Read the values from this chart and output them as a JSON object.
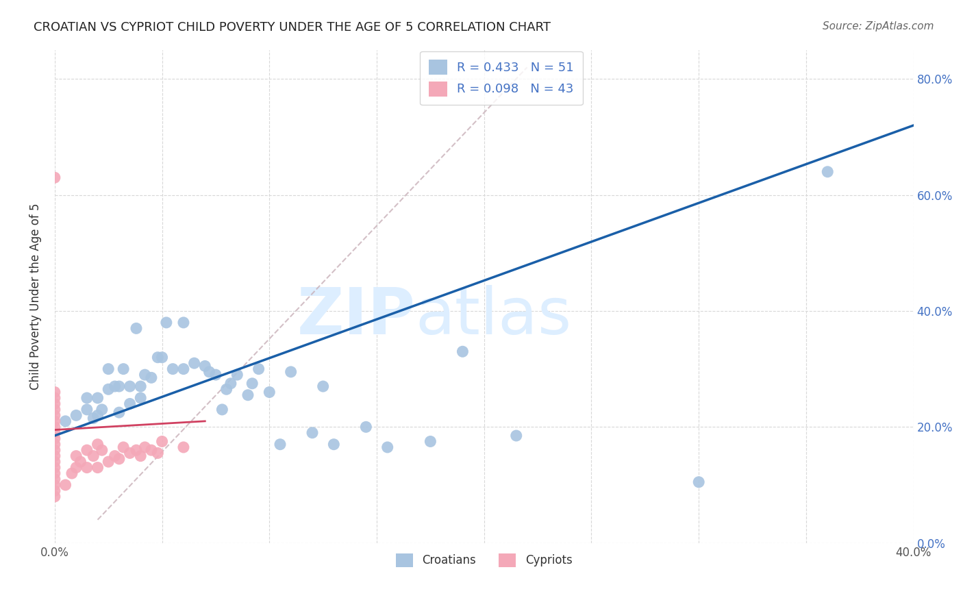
{
  "title": "CROATIAN VS CYPRIOT CHILD POVERTY UNDER THE AGE OF 5 CORRELATION CHART",
  "source": "Source: ZipAtlas.com",
  "ylabel": "Child Poverty Under the Age of 5",
  "xlim": [
    0.0,
    0.4
  ],
  "ylim": [
    0.0,
    0.85
  ],
  "ytick_vals": [
    0.0,
    0.2,
    0.4,
    0.6,
    0.8
  ],
  "ytick_labels": [
    "0.0%",
    "20.0%",
    "40.0%",
    "60.0%",
    "80.0%"
  ],
  "xtick_vals": [
    0.0,
    0.05,
    0.1,
    0.15,
    0.2,
    0.25,
    0.3,
    0.35,
    0.4
  ],
  "xtick_labels": [
    "0.0%",
    "",
    "",
    "",
    "",
    "",
    "",
    "",
    "40.0%"
  ],
  "croatian_R": 0.433,
  "croatian_N": 51,
  "cypriot_R": 0.098,
  "cypriot_N": 43,
  "croatian_color": "#a8c4e0",
  "cypriot_color": "#f4a8b8",
  "trend_color_croatian": "#1a5fa8",
  "trend_color_cypriot": "#d04060",
  "grid_color": "#d8d8d8",
  "diagonal_color": "#c0c0c0",
  "watermark_color": "#ddeeff",
  "croatian_x": [
    0.005,
    0.01,
    0.015,
    0.015,
    0.018,
    0.02,
    0.02,
    0.022,
    0.025,
    0.025,
    0.028,
    0.03,
    0.03,
    0.032,
    0.035,
    0.035,
    0.038,
    0.04,
    0.04,
    0.042,
    0.045,
    0.048,
    0.05,
    0.052,
    0.055,
    0.06,
    0.06,
    0.065,
    0.07,
    0.072,
    0.075,
    0.078,
    0.08,
    0.082,
    0.085,
    0.09,
    0.092,
    0.095,
    0.1,
    0.105,
    0.11,
    0.12,
    0.125,
    0.13,
    0.145,
    0.155,
    0.175,
    0.19,
    0.215,
    0.3,
    0.36
  ],
  "croatian_y": [
    0.21,
    0.22,
    0.23,
    0.25,
    0.215,
    0.22,
    0.25,
    0.23,
    0.265,
    0.3,
    0.27,
    0.225,
    0.27,
    0.3,
    0.24,
    0.27,
    0.37,
    0.25,
    0.27,
    0.29,
    0.285,
    0.32,
    0.32,
    0.38,
    0.3,
    0.3,
    0.38,
    0.31,
    0.305,
    0.295,
    0.29,
    0.23,
    0.265,
    0.275,
    0.29,
    0.255,
    0.275,
    0.3,
    0.26,
    0.17,
    0.295,
    0.19,
    0.27,
    0.17,
    0.2,
    0.165,
    0.175,
    0.33,
    0.185,
    0.105,
    0.64
  ],
  "cypriot_x": [
    0.0,
    0.0,
    0.0,
    0.0,
    0.0,
    0.0,
    0.0,
    0.0,
    0.0,
    0.0,
    0.0,
    0.0,
    0.0,
    0.0,
    0.0,
    0.0,
    0.0,
    0.0,
    0.0,
    0.0,
    0.005,
    0.008,
    0.01,
    0.01,
    0.012,
    0.015,
    0.015,
    0.018,
    0.02,
    0.02,
    0.022,
    0.025,
    0.028,
    0.03,
    0.032,
    0.035,
    0.038,
    0.04,
    0.042,
    0.045,
    0.048,
    0.05,
    0.06
  ],
  "cypriot_y": [
    0.08,
    0.09,
    0.1,
    0.11,
    0.12,
    0.13,
    0.14,
    0.15,
    0.16,
    0.17,
    0.18,
    0.19,
    0.2,
    0.21,
    0.22,
    0.23,
    0.24,
    0.25,
    0.26,
    0.63,
    0.1,
    0.12,
    0.13,
    0.15,
    0.14,
    0.13,
    0.16,
    0.15,
    0.13,
    0.17,
    0.16,
    0.14,
    0.15,
    0.145,
    0.165,
    0.155,
    0.16,
    0.15,
    0.165,
    0.16,
    0.155,
    0.175,
    0.165
  ],
  "trend_croatian_x0": 0.0,
  "trend_croatian_y0": 0.185,
  "trend_croatian_x1": 0.4,
  "trend_croatian_y1": 0.72,
  "trend_cypriot_x0": 0.0,
  "trend_cypriot_y0": 0.195,
  "trend_cypriot_x1": 0.07,
  "trend_cypriot_y1": 0.21
}
